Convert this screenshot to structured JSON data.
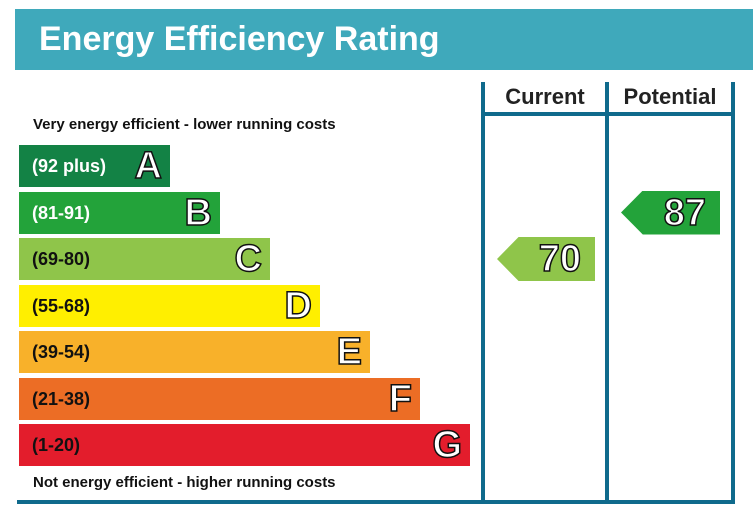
{
  "header": {
    "title": "Energy Efficiency Rating"
  },
  "columns": {
    "current": "Current",
    "potential": "Potential"
  },
  "notes": {
    "top": "Very energy efficient - lower running costs",
    "bottom": "Not energy efficient - higher running costs"
  },
  "chart_data": {
    "type": "bar",
    "title": "Energy Efficiency Rating",
    "bands": [
      {
        "letter": "A",
        "range": "(92 plus)",
        "color": "#138245",
        "text_color": "#ffffff"
      },
      {
        "letter": "B",
        "range": "(81-91)",
        "color": "#23a33a",
        "text_color": "#ffffff"
      },
      {
        "letter": "C",
        "range": "(69-80)",
        "color": "#8fc54a",
        "text_color": "#111111"
      },
      {
        "letter": "D",
        "range": "(55-68)",
        "color": "#ffef00",
        "text_color": "#111111"
      },
      {
        "letter": "E",
        "range": "(39-54)",
        "color": "#f8b12a",
        "text_color": "#111111"
      },
      {
        "letter": "F",
        "range": "(21-38)",
        "color": "#ec6d25",
        "text_color": "#111111"
      },
      {
        "letter": "G",
        "range": "(1-20)",
        "color": "#e31d2c",
        "text_color": "#111111"
      }
    ],
    "current": {
      "value": 70,
      "band": "C",
      "color": "#8fc54a"
    },
    "potential": {
      "value": 87,
      "band": "B",
      "color": "#23a33a"
    }
  }
}
